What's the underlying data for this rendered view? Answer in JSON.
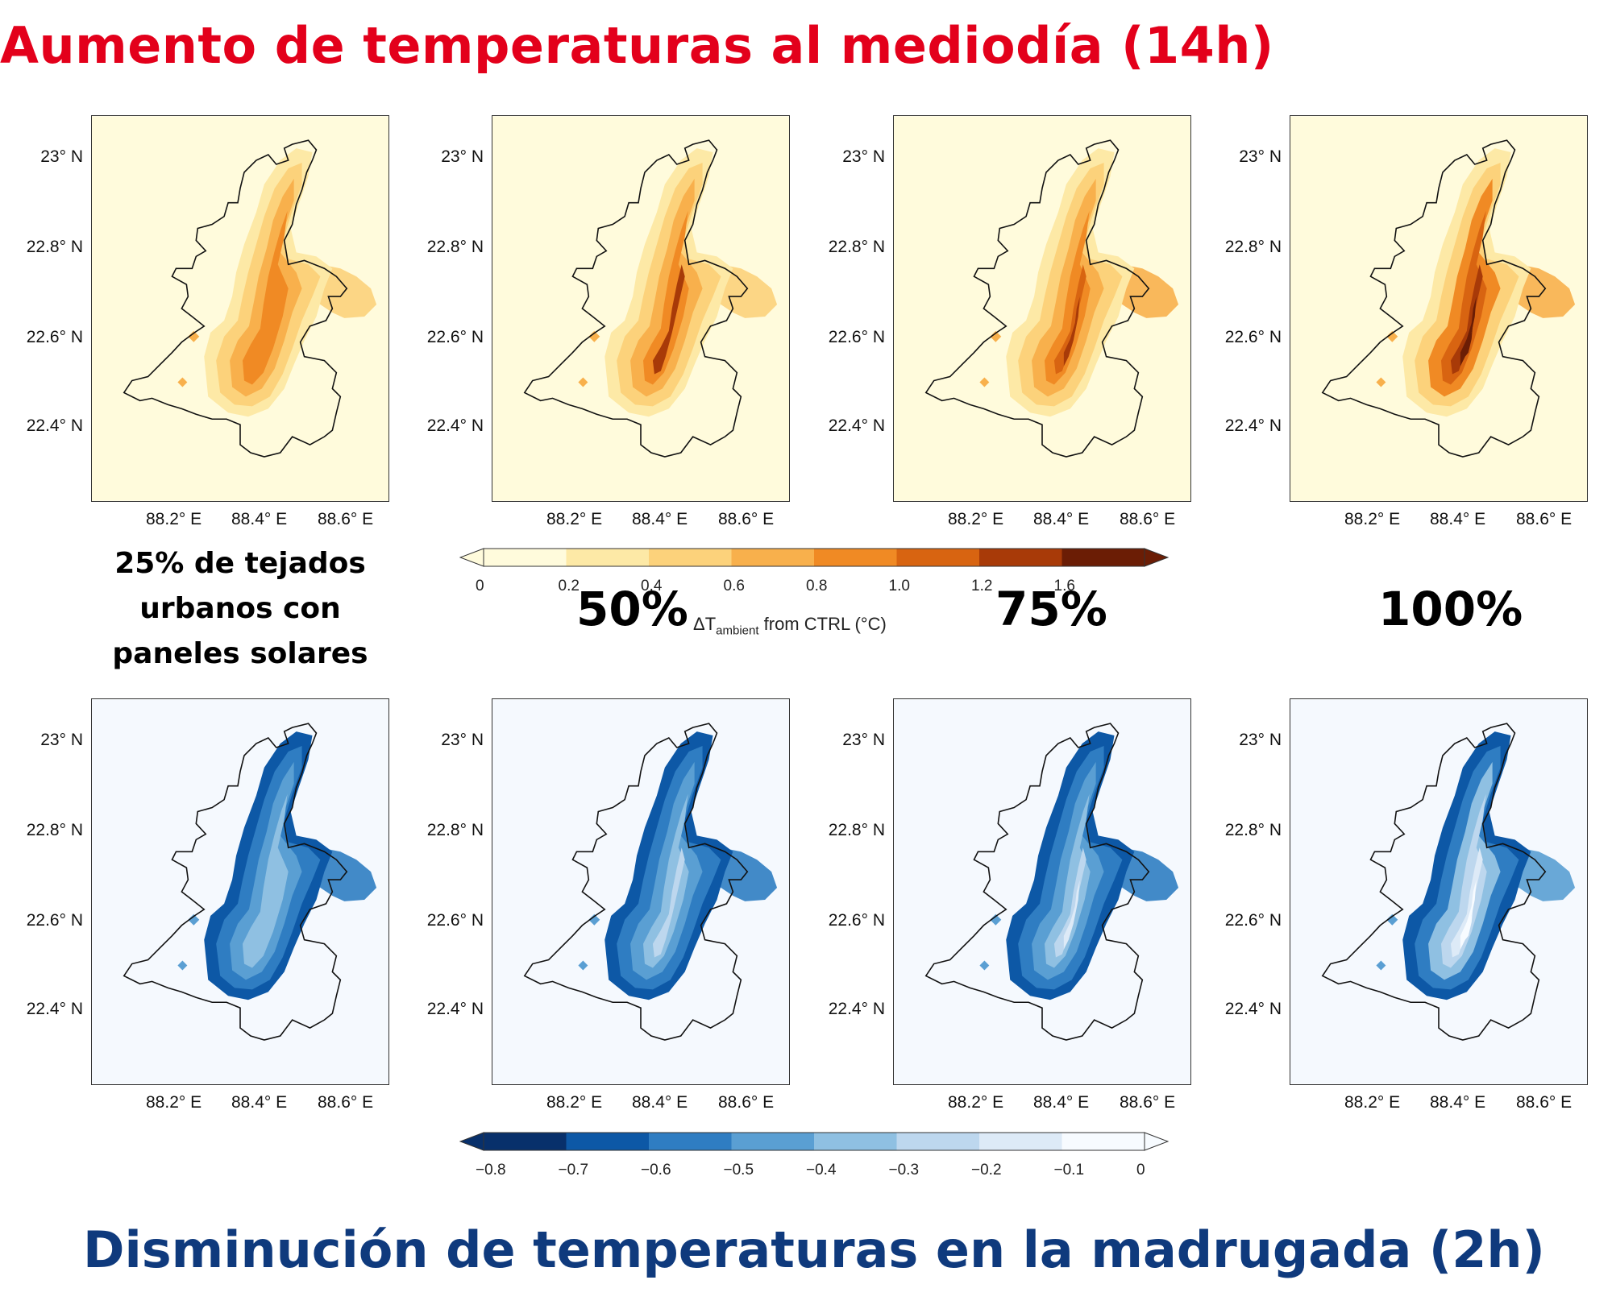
{
  "titles": {
    "top": "Aumento de temperaturas al mediodía (14h)",
    "bottom": "Disminución de temperaturas en la madrugada (2h)"
  },
  "caption": {
    "line1": "25% de tejados",
    "line2": "urbanos con",
    "line3": "paneles solares"
  },
  "percent_labels": [
    "50%",
    "75%",
    "100%"
  ],
  "axis": {
    "lat_ticks": [
      "23° N",
      "22.8° N",
      "22.6° N",
      "22.4° N"
    ],
    "lon_ticks": [
      "88.2° E",
      "88.4° E",
      "88.6° E"
    ]
  },
  "panels": {
    "top": [
      {
        "scenario": "25%",
        "intensity": 0.55
      },
      {
        "scenario": "50%",
        "intensity": 0.75
      },
      {
        "scenario": "75%",
        "intensity": 0.88
      },
      {
        "scenario": "100%",
        "intensity": 1.0
      }
    ],
    "bottom": [
      {
        "scenario": "25%",
        "intensity": 0.55
      },
      {
        "scenario": "50%",
        "intensity": 0.72
      },
      {
        "scenario": "75%",
        "intensity": 0.82
      },
      {
        "scenario": "100%",
        "intensity": 1.0
      }
    ]
  },
  "colorbar_warm": {
    "ticks": [
      "0",
      "0.2",
      "0.4",
      "0.6",
      "0.8",
      "1.0",
      "1.2",
      "1.6"
    ],
    "title_prefix": "ΔT",
    "title_sub": "ambient",
    "title_suffix": " from CTRL (°C)",
    "colors": [
      "#fffbdc",
      "#fde9a6",
      "#fcd27b",
      "#f8b04c",
      "#f08a24",
      "#d86411",
      "#a83a08",
      "#6b1d05"
    ],
    "background": "#fffbdc"
  },
  "colorbar_cool": {
    "ticks": [
      "−0.8",
      "−0.7",
      "−0.6",
      "−0.5",
      "−0.4",
      "−0.3",
      "−0.2",
      "−0.1",
      "0"
    ],
    "colors": [
      "#08306b",
      "#0d58a6",
      "#2f7dc2",
      "#5a9fd3",
      "#8fc0e2",
      "#bdd7ee",
      "#ddeaf7",
      "#f7fbff"
    ],
    "background": "#f5f9fe"
  }
}
